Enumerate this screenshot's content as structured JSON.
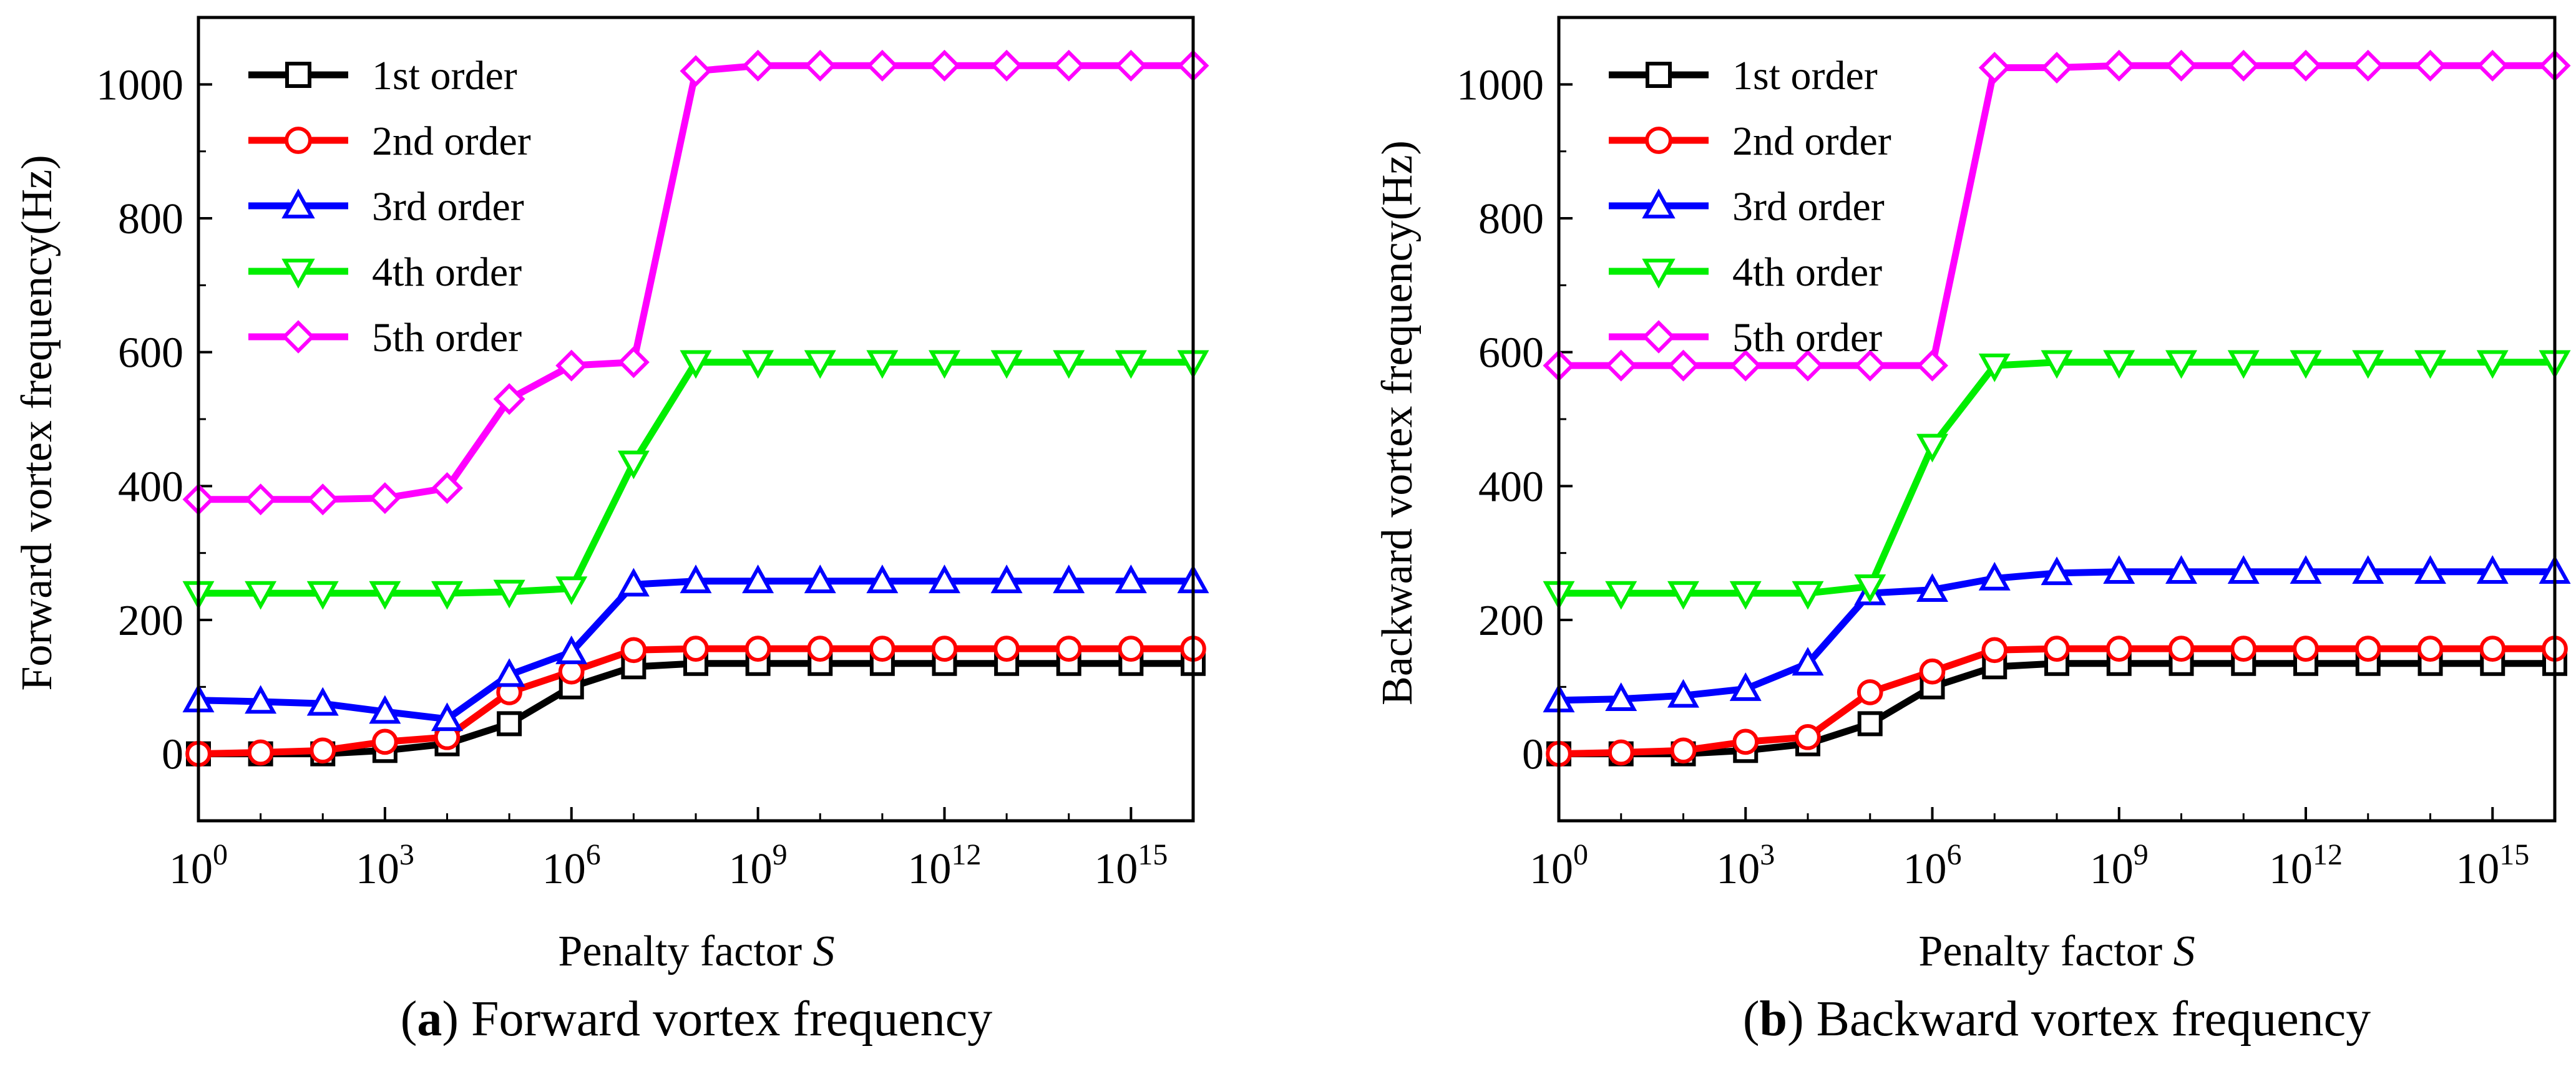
{
  "chart_data": [
    {
      "type": "line",
      "panel_id": "a",
      "title": "Forward vortex frequency",
      "xlabel": "Penalty factor",
      "xlabel_symbol": "S",
      "ylabel": "Forward vortex frequency(Hz)",
      "xscale": "log10",
      "xlim_exp": [
        0,
        16
      ],
      "ylim": [
        -100,
        1100
      ],
      "yticks": [
        0,
        200,
        400,
        600,
        800,
        1000
      ],
      "xtick_exps": [
        0,
        3,
        6,
        9,
        12,
        15
      ],
      "x_exps": [
        0,
        1,
        2,
        3,
        4,
        5,
        6,
        7,
        8,
        9,
        10,
        11,
        12,
        13,
        14,
        15,
        16
      ],
      "legend_position": "top-left",
      "series": [
        {
          "name": "1st order",
          "color": "#000000",
          "marker": "square",
          "values": [
            0,
            0,
            0,
            5,
            15,
            45,
            100,
            130,
            135,
            135,
            135,
            135,
            135,
            135,
            135,
            135,
            135
          ]
        },
        {
          "name": "2nd order",
          "color": "#ff0000",
          "marker": "circle",
          "values": [
            0,
            2,
            5,
            18,
            25,
            92,
            123,
            155,
            157,
            157,
            157,
            157,
            157,
            157,
            157,
            157,
            157
          ]
        },
        {
          "name": "3rd order",
          "color": "#0000ff",
          "marker": "triangle-up",
          "values": [
            80,
            78,
            75,
            63,
            52,
            118,
            152,
            253,
            258,
            258,
            258,
            258,
            258,
            258,
            258,
            258,
            258
          ]
        },
        {
          "name": "4th order",
          "color": "#00ee00",
          "marker": "triangle-down",
          "values": [
            240,
            240,
            240,
            240,
            240,
            242,
            247,
            435,
            585,
            585,
            585,
            585,
            585,
            585,
            585,
            585,
            585
          ]
        },
        {
          "name": "5th order",
          "color": "#ff00ff",
          "marker": "diamond",
          "values": [
            380,
            380,
            380,
            382,
            397,
            530,
            580,
            585,
            1020,
            1028,
            1028,
            1028,
            1028,
            1028,
            1028,
            1028,
            1028
          ]
        }
      ]
    },
    {
      "type": "line",
      "panel_id": "b",
      "title": "Backward vortex frequency",
      "xlabel": "Penalty factor",
      "xlabel_symbol": "S",
      "ylabel": "Backward vortex frequency(Hz)",
      "xscale": "log10",
      "xlim_exp": [
        0,
        16
      ],
      "ylim": [
        -100,
        1100
      ],
      "yticks": [
        0,
        200,
        400,
        600,
        800,
        1000
      ],
      "xtick_exps": [
        0,
        3,
        6,
        9,
        12,
        15
      ],
      "x_exps": [
        0,
        1,
        2,
        3,
        4,
        5,
        6,
        7,
        8,
        9,
        10,
        11,
        12,
        13,
        14,
        15,
        16
      ],
      "legend_position": "top-left",
      "series": [
        {
          "name": "1st order",
          "color": "#000000",
          "marker": "square",
          "values": [
            0,
            0,
            0,
            5,
            15,
            45,
            100,
            130,
            135,
            135,
            135,
            135,
            135,
            135,
            135,
            135,
            135
          ]
        },
        {
          "name": "2nd order",
          "color": "#ff0000",
          "marker": "circle",
          "values": [
            0,
            2,
            5,
            18,
            25,
            92,
            123,
            155,
            157,
            157,
            157,
            157,
            157,
            157,
            157,
            157,
            157
          ]
        },
        {
          "name": "3rd order",
          "color": "#0000ff",
          "marker": "triangle-up",
          "values": [
            80,
            82,
            87,
            97,
            135,
            240,
            245,
            262,
            270,
            272,
            272,
            272,
            272,
            272,
            272,
            272,
            272
          ]
        },
        {
          "name": "4th order",
          "color": "#00ee00",
          "marker": "triangle-down",
          "values": [
            240,
            240,
            240,
            240,
            240,
            250,
            460,
            580,
            585,
            585,
            585,
            585,
            585,
            585,
            585,
            585,
            585
          ]
        },
        {
          "name": "5th order",
          "color": "#ff00ff",
          "marker": "diamond",
          "values": [
            580,
            580,
            580,
            580,
            580,
            580,
            580,
            1025,
            1025,
            1028,
            1028,
            1028,
            1028,
            1028,
            1028,
            1028,
            1028
          ]
        }
      ]
    }
  ]
}
